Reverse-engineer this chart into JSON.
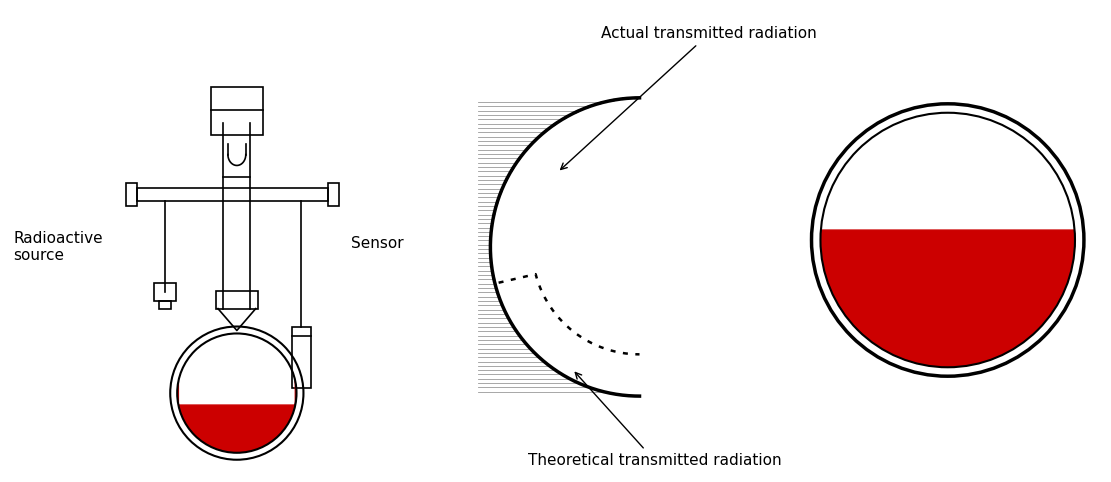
{
  "bg_color": "#ffffff",
  "line_color": "#000000",
  "red_color": "#cc0000",
  "title1": "Actual transmitted radiation",
  "title2": "Theoretical transmitted radiation",
  "label_radioactive": "Radioactive\nsource",
  "label_sensor": "Sensor",
  "font_size_labels": 11,
  "font_size_annot": 11
}
